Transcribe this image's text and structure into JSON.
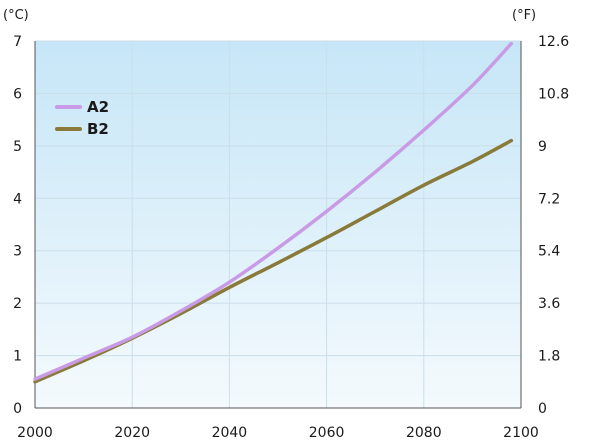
{
  "chart_data": {
    "type": "line",
    "title": "",
    "xlabel": "",
    "ylabel": "(°C)",
    "ylabel_right": "(°F)",
    "xlim": [
      2000,
      2100
    ],
    "ylim": [
      0,
      7
    ],
    "ylim_right": [
      0,
      12.6
    ],
    "x_ticks": [
      "2000",
      "2020",
      "2040",
      "2060",
      "2080",
      "2100"
    ],
    "y_ticks": [
      "0",
      "1",
      "2",
      "3",
      "4",
      "5",
      "6",
      "7"
    ],
    "y_ticks_right": [
      "0",
      "1.8",
      "3.6",
      "5.4",
      "7.2",
      "9",
      "10.8",
      "12.6"
    ],
    "grid": true,
    "background": "light blue gradient",
    "legend_position": "top-left",
    "series": [
      {
        "name": "A2",
        "color": "#c99be6",
        "x": [
          2000,
          2010,
          2020,
          2030,
          2040,
          2050,
          2060,
          2070,
          2080,
          2090,
          2098
        ],
        "y": [
          0.55,
          0.95,
          1.35,
          1.85,
          2.4,
          3.05,
          3.75,
          4.5,
          5.3,
          6.15,
          6.95
        ]
      },
      {
        "name": "B2",
        "color": "#8a7a3a",
        "x": [
          2000,
          2010,
          2020,
          2030,
          2040,
          2050,
          2060,
          2070,
          2080,
          2090,
          2098
        ],
        "y": [
          0.5,
          0.9,
          1.33,
          1.8,
          2.3,
          2.77,
          3.25,
          3.75,
          4.25,
          4.7,
          5.1
        ]
      }
    ]
  }
}
